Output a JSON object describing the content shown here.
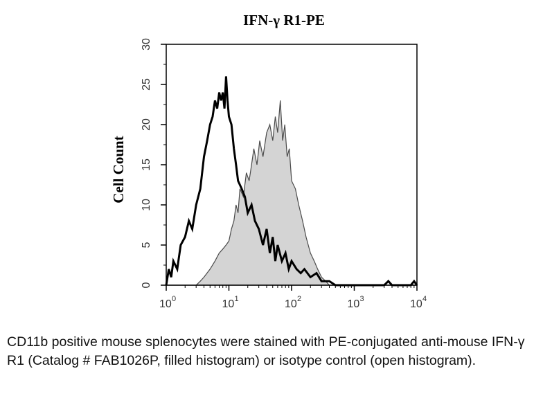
{
  "chart_data": {
    "type": "area",
    "title": "IFN-γ R1-PE",
    "xlabel": "",
    "ylabel": "Cell Count",
    "x_scale": "log",
    "xlim": [
      1,
      10000
    ],
    "ylim": [
      0,
      30
    ],
    "x_ticks": [
      {
        "base": "10",
        "exp": "0"
      },
      {
        "base": "10",
        "exp": "1"
      },
      {
        "base": "10",
        "exp": "2"
      },
      {
        "base": "10",
        "exp": "3"
      },
      {
        "base": "10",
        "exp": "4"
      }
    ],
    "y_ticks": [
      "0",
      "5",
      "10",
      "15",
      "20",
      "25",
      "30"
    ],
    "grid": false,
    "series": [
      {
        "style": "filled",
        "fill": "#d4d4d4",
        "stroke": "#4a4a4a",
        "points": [
          [
            1,
            0
          ],
          [
            2,
            0
          ],
          [
            3,
            0
          ],
          [
            3.5,
            0.5
          ],
          [
            4,
            1
          ],
          [
            5,
            2
          ],
          [
            6,
            3
          ],
          [
            7,
            4
          ],
          [
            8,
            4.5
          ],
          [
            9,
            5
          ],
          [
            10,
            5.5
          ],
          [
            11,
            7
          ],
          [
            12,
            8
          ],
          [
            13,
            10
          ],
          [
            14,
            9
          ],
          [
            15,
            12
          ],
          [
            17,
            11
          ],
          [
            19,
            14
          ],
          [
            21,
            13
          ],
          [
            23,
            15
          ],
          [
            25,
            17
          ],
          [
            28,
            15
          ],
          [
            31,
            18
          ],
          [
            35,
            16
          ],
          [
            40,
            19
          ],
          [
            45,
            20
          ],
          [
            50,
            18
          ],
          [
            55,
            21
          ],
          [
            60,
            19
          ],
          [
            66,
            23
          ],
          [
            72,
            18
          ],
          [
            78,
            20
          ],
          [
            85,
            16
          ],
          [
            92,
            17
          ],
          [
            100,
            13
          ],
          [
            115,
            12
          ],
          [
            130,
            10
          ],
          [
            150,
            8
          ],
          [
            170,
            6
          ],
          [
            200,
            4
          ],
          [
            230,
            3
          ],
          [
            260,
            2
          ],
          [
            300,
            1
          ],
          [
            350,
            0.5
          ],
          [
            400,
            0
          ],
          [
            10000,
            0
          ]
        ]
      },
      {
        "style": "open",
        "fill": "none",
        "stroke": "#000000",
        "points": [
          [
            1,
            0
          ],
          [
            1.1,
            2
          ],
          [
            1.2,
            1
          ],
          [
            1.3,
            3
          ],
          [
            1.5,
            2
          ],
          [
            1.7,
            5
          ],
          [
            2,
            6
          ],
          [
            2.3,
            8
          ],
          [
            2.6,
            7
          ],
          [
            3,
            10
          ],
          [
            3.5,
            12
          ],
          [
            4,
            16
          ],
          [
            4.5,
            18
          ],
          [
            5,
            20
          ],
          [
            5.5,
            21
          ],
          [
            6,
            23
          ],
          [
            6.5,
            22
          ],
          [
            7,
            24
          ],
          [
            7.5,
            23
          ],
          [
            8,
            24
          ],
          [
            8.5,
            22
          ],
          [
            9,
            26
          ],
          [
            9.5,
            23
          ],
          [
            10,
            21
          ],
          [
            11,
            20
          ],
          [
            12,
            17
          ],
          [
            13,
            15
          ],
          [
            14,
            13
          ],
          [
            16,
            12
          ],
          [
            18,
            11
          ],
          [
            20,
            9
          ],
          [
            23,
            10
          ],
          [
            26,
            8
          ],
          [
            30,
            7
          ],
          [
            35,
            5
          ],
          [
            40,
            7
          ],
          [
            45,
            4
          ],
          [
            50,
            6
          ],
          [
            55,
            3
          ],
          [
            60,
            5
          ],
          [
            70,
            3
          ],
          [
            80,
            4
          ],
          [
            90,
            2
          ],
          [
            100,
            3
          ],
          [
            120,
            2
          ],
          [
            140,
            1.5
          ],
          [
            160,
            2
          ],
          [
            200,
            1
          ],
          [
            250,
            1.5
          ],
          [
            300,
            0.5
          ],
          [
            400,
            0.5
          ],
          [
            500,
            0
          ],
          [
            800,
            0
          ],
          [
            1000,
            0
          ],
          [
            3000,
            0
          ],
          [
            3500,
            0.5
          ],
          [
            4000,
            0
          ],
          [
            8000,
            0
          ],
          [
            9000,
            0.5
          ],
          [
            10000,
            0
          ]
        ]
      }
    ]
  },
  "caption": "CD11b positive mouse splenocytes were stained with PE-conjugated anti-mouse IFN-γ R1 (Catalog # FAB1026P, filled histogram) or isotype control (open histogram)."
}
